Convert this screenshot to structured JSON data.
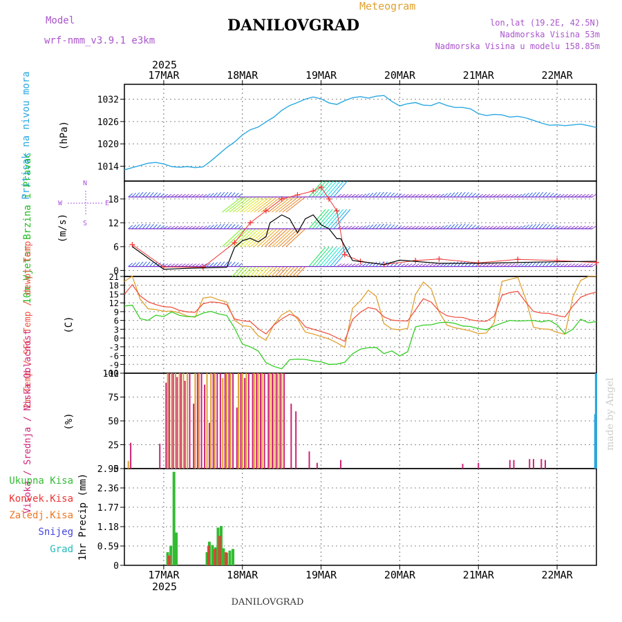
{
  "header": {
    "model_label": "Model",
    "model_name": "wrf-nmm_v3.9.1 e3km",
    "title": "DANILOVGRAD",
    "product": "Meteogram",
    "coords": "lon,lat (19.2E, 42.5N)",
    "elevation": "Nadmorska Visina 53m",
    "model_elevation": "Nadmorska Visina u modelu 158.85m",
    "credit": "made by Angel",
    "footer": "DANILOVGRAD"
  },
  "colors": {
    "pressure": "#29a8e0",
    "wind_label": "#22bb22",
    "wind_speed_line": "#000000",
    "gust_marker": "#ee3333",
    "t2m": "#ee5544",
    "sfc": "#e0a030",
    "dewpoint": "#33cc22",
    "cloud_high": "#29a8e0",
    "cloud_mid": "#e0a030",
    "cloud_low": "#cc2277",
    "precip_total": "#33bb33",
    "precip_conv": "#ee3333",
    "precip_frozen": "#ee7722",
    "precip_snow": "#4444dd",
    "precip_grad": "#22bbbb",
    "compass": "#aa55dd",
    "header_purple": "#aa55cc"
  },
  "chart_data": [
    {
      "type": "line",
      "title": "Pritisak na nivou mora",
      "ylabel": "(hPa)",
      "ylim": [
        1010,
        1036
      ],
      "yticks": [
        1014,
        1020,
        1026,
        1032
      ],
      "x_top_year": "2025",
      "x_top_labels": [
        "17MAR",
        "18MAR",
        "19MAR",
        "20MAR",
        "21MAR",
        "22MAR"
      ],
      "series": [
        {
          "name": "SLP",
          "x": [
            0.5,
            0.6,
            0.7,
            0.8,
            0.9,
            1.0,
            1.1,
            1.2,
            1.3,
            1.4,
            1.5,
            1.6,
            1.7,
            1.8,
            1.9,
            2.0,
            2.1,
            2.2,
            2.3,
            2.4,
            2.5,
            2.6,
            2.7,
            2.8,
            2.9,
            3.0,
            3.1,
            3.2,
            3.3,
            3.4,
            3.5,
            3.6,
            3.7,
            3.8,
            3.9,
            4.0,
            4.1,
            4.2,
            4.3,
            4.4,
            4.5,
            4.6,
            4.7,
            4.8,
            4.9,
            5.0,
            5.1,
            5.2,
            5.3,
            5.4,
            5.5,
            5.6,
            5.7,
            5.8,
            5.9,
            6.0,
            6.1,
            6.2,
            6.3,
            6.4,
            6.5
          ],
          "values": [
            1013.0,
            1013.6,
            1014.2,
            1014.8,
            1015.0,
            1014.6,
            1013.9,
            1013.7,
            1013.9,
            1013.6,
            1013.8,
            1015.4,
            1017.2,
            1019.0,
            1020.5,
            1022.4,
            1023.8,
            1024.5,
            1025.9,
            1027.2,
            1029.0,
            1030.3,
            1031.1,
            1032.0,
            1032.6,
            1032.1,
            1031.0,
            1030.6,
            1031.6,
            1032.4,
            1032.7,
            1032.3,
            1032.8,
            1033.0,
            1031.4,
            1030.2,
            1030.8,
            1031.1,
            1030.4,
            1030.3,
            1031.1,
            1030.3,
            1029.8,
            1029.8,
            1029.4,
            1028.1,
            1027.6,
            1027.9,
            1027.8,
            1027.2,
            1027.4,
            1027.0,
            1026.3,
            1025.6,
            1025.0,
            1025.1,
            1024.9,
            1025.1,
            1025.3,
            1024.9,
            1024.4
          ]
        }
      ]
    },
    {
      "type": "line",
      "title": "10m Vjetar Brzina i Pravac",
      "ylabel": "(m/s)",
      "ylim": [
        -1.5,
        22.5
      ],
      "yticks": [
        0,
        6,
        12,
        18
      ],
      "compass": {
        "north": "N",
        "south": "S",
        "west": "W",
        "east": "E"
      },
      "series": [
        {
          "name": "wind speed",
          "x": [
            0.6,
            1.0,
            1.4,
            1.8,
            1.9,
            2.0,
            2.1,
            2.2,
            2.3,
            2.35,
            2.5,
            2.6,
            2.7,
            2.8,
            2.9,
            3.0,
            3.1,
            3.2,
            3.25,
            3.4,
            3.8,
            4.0,
            4.5,
            5.0,
            5.5,
            5.7,
            6.0,
            6.5
          ],
          "values": [
            6.0,
            0.3,
            0.6,
            0.8,
            5.8,
            7.5,
            8.1,
            7.2,
            8.5,
            12.0,
            14.0,
            13.0,
            9.5,
            13.0,
            14.0,
            11.5,
            10.5,
            8.0,
            8.0,
            2.5,
            1.5,
            2.6,
            1.8,
            1.8,
            2.0,
            2.1,
            2.2,
            2.3
          ]
        },
        {
          "name": "gusts",
          "x": [
            0.6,
            1.0,
            1.5,
            1.9,
            2.1,
            2.3,
            2.5,
            2.7,
            2.9,
            3.0,
            3.1,
            3.2,
            3.3,
            3.5,
            3.8,
            4.2,
            4.5,
            5.0,
            5.5,
            6.0,
            6.5
          ],
          "values": [
            6.5,
            0.9,
            0.8,
            7.0,
            12.0,
            15.0,
            18.0,
            19.0,
            20.0,
            21.0,
            18.0,
            15.0,
            4.0,
            2.3,
            1.5,
            2.5,
            2.9,
            1.9,
            2.8,
            2.5,
            2.0
          ]
        }
      ],
      "arrow_rows": [
        1,
        10.5,
        18.5
      ]
    },
    {
      "type": "line",
      "title": "2m Temp / SFC Temp / dewpt Temp",
      "ylabel": "(C)",
      "ylim": [
        -12,
        21
      ],
      "yticks": [
        -12,
        -9,
        -6,
        -3,
        0,
        3,
        6,
        9,
        12,
        15,
        18,
        21
      ],
      "series": [
        {
          "name": "2m Temp",
          "x": [
            0.5,
            0.6,
            0.7,
            0.8,
            0.9,
            1.0,
            1.1,
            1.2,
            1.3,
            1.4,
            1.5,
            1.6,
            1.7,
            1.8,
            1.9,
            2.0,
            2.1,
            2.2,
            2.3,
            2.4,
            2.5,
            2.6,
            2.7,
            2.8,
            2.9,
            3.0,
            3.1,
            3.2,
            3.3,
            3.4,
            3.5,
            3.6,
            3.7,
            3.8,
            3.9,
            4.0,
            4.1,
            4.2,
            4.3,
            4.4,
            4.5,
            4.6,
            4.7,
            4.8,
            4.9,
            5.0,
            5.1,
            5.2,
            5.3,
            5.4,
            5.5,
            5.6,
            5.7,
            5.8,
            5.9,
            6.0,
            6.1,
            6.2,
            6.3,
            6.4,
            6.5
          ],
          "values": [
            14.9,
            18.2,
            14.4,
            12.4,
            11.4,
            10.7,
            10.5,
            9.4,
            8.9,
            8.8,
            11.7,
            12.3,
            12.1,
            11.4,
            6.5,
            5.9,
            5.6,
            3.2,
            1.4,
            4.4,
            6.5,
            8.1,
            7.1,
            3.8,
            3.0,
            2.2,
            1.4,
            0.1,
            -1.1,
            6.3,
            8.8,
            10.4,
            9.8,
            7.2,
            6.1,
            5.9,
            5.8,
            9.6,
            13.4,
            12.2,
            9.2,
            7.6,
            7.1,
            7.0,
            6.2,
            5.8,
            5.7,
            7.4,
            14.6,
            15.5,
            15.9,
            12.3,
            9.1,
            8.5,
            8.4,
            7.6,
            7.2,
            10.9,
            13.9,
            15.0,
            15.7
          ]
        },
        {
          "name": "SFC Temp",
          "x": [
            0.5,
            0.6,
            0.7,
            0.8,
            0.9,
            1.0,
            1.1,
            1.2,
            1.3,
            1.4,
            1.5,
            1.6,
            1.7,
            1.8,
            1.9,
            2.0,
            2.1,
            2.2,
            2.3,
            2.4,
            2.5,
            2.6,
            2.7,
            2.8,
            2.9,
            3.0,
            3.1,
            3.2,
            3.3,
            3.4,
            3.5,
            3.6,
            3.7,
            3.8,
            3.9,
            4.0,
            4.1,
            4.2,
            4.3,
            4.4,
            4.5,
            4.6,
            4.7,
            4.8,
            4.9,
            5.0,
            5.1,
            5.2,
            5.3,
            5.4,
            5.5,
            5.6,
            5.7,
            5.8,
            5.9,
            6.0,
            6.1,
            6.2,
            6.3,
            6.4,
            6.5
          ],
          "values": [
            19.3,
            21.1,
            13.3,
            10.0,
            9.7,
            9.1,
            9.2,
            8.6,
            7.5,
            7.1,
            13.6,
            14.0,
            13.0,
            12.3,
            6.0,
            4.2,
            3.9,
            0.8,
            -0.8,
            4.6,
            7.9,
            9.4,
            6.5,
            2.0,
            1.4,
            0.5,
            -0.3,
            -1.6,
            -3.2,
            10.1,
            12.7,
            16.3,
            14.2,
            4.9,
            3.1,
            2.8,
            3.3,
            14.8,
            19.1,
            16.7,
            8.9,
            4.4,
            3.5,
            3.0,
            2.4,
            1.5,
            1.7,
            5.2,
            19.3,
            20.0,
            20.7,
            13.5,
            3.7,
            3.1,
            3.0,
            1.9,
            1.3,
            14.0,
            19.6,
            21.0,
            21.1
          ]
        },
        {
          "name": "dewpt Temp",
          "x": [
            0.5,
            0.6,
            0.7,
            0.8,
            0.9,
            1.0,
            1.1,
            1.2,
            1.3,
            1.4,
            1.5,
            1.6,
            1.7,
            1.8,
            1.9,
            2.0,
            2.1,
            2.2,
            2.3,
            2.4,
            2.5,
            2.6,
            2.7,
            2.8,
            2.9,
            3.0,
            3.1,
            3.2,
            3.3,
            3.4,
            3.5,
            3.6,
            3.7,
            3.8,
            3.9,
            4.0,
            4.1,
            4.2,
            4.3,
            4.4,
            4.5,
            4.6,
            4.7,
            4.8,
            4.9,
            5.0,
            5.1,
            5.2,
            5.3,
            5.4,
            5.5,
            5.6,
            5.7,
            5.8,
            5.9,
            6.0,
            6.1,
            6.2,
            6.3,
            6.4,
            6.5
          ],
          "values": [
            10.9,
            11.2,
            6.6,
            6.0,
            7.8,
            7.3,
            8.9,
            7.7,
            7.3,
            7.3,
            8.5,
            9.1,
            8.2,
            7.7,
            3.4,
            -2.1,
            -3.0,
            -4.4,
            -8.4,
            -9.7,
            -10.5,
            -7.4,
            -7.2,
            -7.3,
            -7.8,
            -8.1,
            -9.0,
            -8.9,
            -8.3,
            -5.4,
            -3.8,
            -3.3,
            -3.2,
            -5.3,
            -4.4,
            -6.1,
            -4.7,
            3.8,
            4.4,
            4.5,
            5.2,
            5.4,
            5.0,
            4.1,
            3.9,
            3.2,
            2.8,
            4.1,
            5.1,
            6.0,
            5.8,
            5.9,
            6.0,
            5.5,
            6.0,
            4.5,
            1.4,
            3.0,
            6.4,
            5.2,
            5.6
          ]
        }
      ]
    },
    {
      "type": "bar",
      "title": "Visoka / Srednja / Niska Oblacnost",
      "ylabel": "(%)",
      "ylim": [
        0,
        100
      ],
      "yticks": [
        0,
        25,
        50,
        75,
        100
      ],
      "series": [
        {
          "name": "Visoka Oblacnost",
          "x": [
            6.48,
            6.49
          ],
          "values": [
            57,
            100
          ]
        },
        {
          "name": "Srednja Oblacnost",
          "x": [
            0.55,
            1.05,
            1.1,
            1.15,
            1.2,
            1.25,
            1.3,
            1.4,
            1.45,
            1.55,
            1.6,
            1.65,
            1.75,
            1.8,
            1.85,
            1.95,
            2.0,
            2.05,
            2.15,
            2.2,
            2.25,
            2.35,
            2.4,
            2.45,
            2.5
          ],
          "values": [
            8,
            100,
            100,
            100,
            100,
            100,
            100,
            100,
            100,
            100,
            100,
            100,
            95,
            100,
            100,
            100,
            100,
            100,
            100,
            100,
            100,
            100,
            100,
            100,
            100
          ]
        },
        {
          "name": "Niska Oblacnost",
          "x": [
            0.58,
            0.95,
            1.03,
            1.07,
            1.12,
            1.17,
            1.22,
            1.27,
            1.33,
            1.38,
            1.43,
            1.48,
            1.52,
            1.58,
            1.63,
            1.68,
            1.72,
            1.78,
            1.83,
            1.88,
            1.93,
            1.98,
            2.03,
            2.08,
            2.13,
            2.18,
            2.23,
            2.28,
            2.33,
            2.38,
            2.43,
            2.48,
            2.53,
            2.62,
            2.68,
            2.85,
            2.95,
            3.25,
            4.8,
            5.0,
            5.4,
            5.45,
            5.65,
            5.7,
            5.8,
            5.85
          ],
          "values": [
            27,
            26,
            90,
            100,
            100,
            96,
            100,
            92,
            100,
            68,
            100,
            100,
            88,
            48,
            100,
            100,
            100,
            100,
            100,
            100,
            64,
            100,
            95,
            100,
            100,
            100,
            100,
            100,
            100,
            100,
            100,
            100,
            100,
            68,
            60,
            18,
            6,
            9,
            5,
            6,
            9,
            9,
            10,
            10,
            10,
            9
          ]
        }
      ]
    },
    {
      "type": "bar",
      "title": "1hr Precip",
      "ylabel": "1hr Precip (mm)",
      "ylim": [
        0,
        2.95
      ],
      "yticks": [
        0,
        0.59,
        1.18,
        1.77,
        2.36,
        2.95
      ],
      "x_bottom_labels": [
        "17MAR",
        "18MAR",
        "19MAR",
        "20MAR",
        "21MAR",
        "22MAR"
      ],
      "x_bottom_year": "2025",
      "legend": [
        "Ukupna Kisa",
        "Konvek.Kisa",
        "Zaledj.Kisa",
        "Snijeg",
        "Grad"
      ],
      "series": [
        {
          "name": "Ukupna Kisa",
          "x": [
            1.05,
            1.09,
            1.13,
            1.16,
            1.55,
            1.58,
            1.62,
            1.66,
            1.69,
            1.73,
            1.76,
            1.8,
            1.84,
            1.88
          ],
          "values": [
            0.4,
            0.6,
            2.85,
            1.0,
            0.4,
            0.72,
            0.62,
            0.55,
            1.15,
            1.2,
            0.52,
            0.38,
            0.45,
            0.5
          ]
        },
        {
          "name": "Konvek.Kisa",
          "x": [
            1.07,
            1.57,
            1.65,
            1.71,
            1.79
          ],
          "values": [
            0.3,
            0.6,
            0.5,
            0.9,
            0.4
          ]
        }
      ]
    }
  ]
}
